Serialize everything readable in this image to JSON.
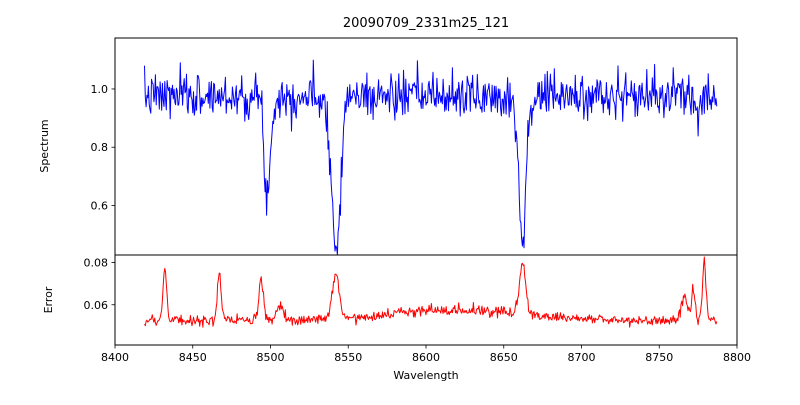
{
  "figure": {
    "background": "#ffffff",
    "axis_color": "#000000"
  },
  "chart_data": {
    "type": "line",
    "title": "20090709_2331m25_121",
    "xlabel": "Wavelength",
    "grid": false,
    "legend": false,
    "x_range": [
      8400,
      8800
    ],
    "x_span": [
      8419,
      8787
    ],
    "x_step": 0.5,
    "seed": 7,
    "x_ticks": {
      "values": [
        8400,
        8450,
        8500,
        8550,
        8600,
        8650,
        8700,
        8750,
        8800
      ],
      "labels": [
        "8400",
        "8450",
        "8500",
        "8550",
        "8600",
        "8650",
        "8700",
        "8750",
        "8800"
      ]
    },
    "subplots": [
      {
        "name": "spectrum",
        "ylabel": "Spectrum",
        "color": "#0000ff",
        "y_range": [
          0.43,
          1.175
        ],
        "y_ticks": {
          "values": [
            0.6,
            0.8,
            1.0
          ],
          "labels": [
            "0.6",
            "0.8",
            "1.0"
          ]
        },
        "baseline": 0.975,
        "noise_sigma": 0.038,
        "features": [
          {
            "center": 8498.0,
            "amp": -0.34,
            "width": 2.0
          },
          {
            "center": 8542.1,
            "amp": -0.53,
            "width": 2.8
          },
          {
            "center": 8662.1,
            "amp": -0.48,
            "width": 2.4
          }
        ]
      },
      {
        "name": "error",
        "ylabel": "Error",
        "color": "#ff0000",
        "y_range": [
          0.041,
          0.0835
        ],
        "y_ticks": {
          "values": [
            0.06,
            0.08
          ],
          "labels": [
            "0.06",
            "0.08"
          ]
        },
        "baseline": 0.0525,
        "noise_sigma": 0.0012,
        "features": [
          {
            "center": 8432,
            "amp": 0.025,
            "width": 1.2
          },
          {
            "center": 8467,
            "amp": 0.022,
            "width": 1.2
          },
          {
            "center": 8494,
            "amp": 0.02,
            "width": 1.4
          },
          {
            "center": 8506,
            "amp": 0.006,
            "width": 2.0
          },
          {
            "center": 8542,
            "amp": 0.021,
            "width": 2.2
          },
          {
            "center": 8620,
            "amp": 0.005,
            "width": 45
          },
          {
            "center": 8662,
            "amp": 0.024,
            "width": 2.0
          },
          {
            "center": 8766,
            "amp": 0.012,
            "width": 2.0
          },
          {
            "center": 8772,
            "amp": 0.014,
            "width": 1.2
          },
          {
            "center": 8779,
            "amp": 0.026,
            "width": 1.2
          }
        ]
      }
    ]
  }
}
